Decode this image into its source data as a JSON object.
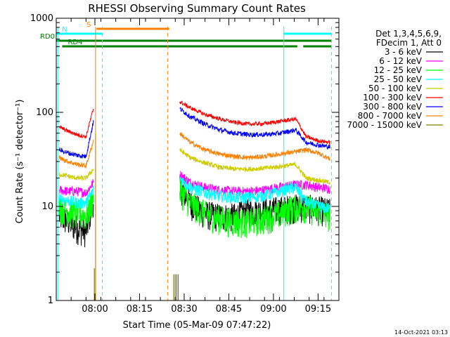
{
  "chart_data": {
    "type": "line",
    "title": "RHESSI Observing Summary Count Rates",
    "xlabel": "Start Time (05-Mar-09 07:47:22)",
    "ylabel": "Count Rate (s⁻¹ detector⁻¹)",
    "ylog": true,
    "ylim": [
      1,
      1000
    ],
    "xlim_minutes_after_0747": [
      0,
      95
    ],
    "x_ticks": [
      {
        "minute": 13,
        "label": "08:00"
      },
      {
        "minute": 28,
        "label": "08:15"
      },
      {
        "minute": 43,
        "label": "08:30"
      },
      {
        "minute": 58,
        "label": "08:45"
      },
      {
        "minute": 73,
        "label": "09:00"
      },
      {
        "minute": 88,
        "label": "09:15"
      }
    ],
    "y_ticks": [
      {
        "value": 1,
        "label": "1"
      },
      {
        "value": 10,
        "label": "10"
      },
      {
        "value": 100,
        "label": "100"
      },
      {
        "value": 1000,
        "label": "1000"
      }
    ],
    "legend_header": [
      "Det 1,3,4,5,6,9,",
      "FDecim 1, Att 0"
    ],
    "legend_placement": "right",
    "series": [
      {
        "name": "3 - 6 keV",
        "color": "#000000",
        "seg1": [
          8,
          7,
          6,
          5.5,
          12
        ],
        "seg2": [
          17,
          11,
          8.5,
          8,
          8,
          9,
          9,
          9.5,
          10,
          10,
          9.5,
          9
        ]
      },
      {
        "name": "6 - 12 keV",
        "color": "#ff00ff",
        "seg1": [
          15,
          14.5,
          14.5,
          14,
          18
        ],
        "seg2": [
          22,
          18,
          16,
          15,
          14.5,
          14.5,
          15,
          16,
          17,
          17,
          16,
          15.5
        ]
      },
      {
        "name": "12 - 25 keV",
        "color": "#00ff00",
        "seg1": [
          10,
          9,
          8.5,
          8,
          12
        ],
        "seg2": [
          15,
          11,
          8.5,
          7.5,
          7,
          7,
          7.5,
          8.5,
          10,
          10,
          9,
          8
        ]
      },
      {
        "name": "25 - 50 keV",
        "color": "#00ffff",
        "seg1": [
          12,
          11.5,
          11,
          11,
          15
        ],
        "seg2": [
          20,
          16,
          14,
          13,
          12.5,
          12.5,
          13,
          14.5,
          16,
          11,
          10,
          9.5
        ]
      },
      {
        "name": "50 - 100 keV",
        "color": "#cccc00",
        "seg1": [
          22,
          21,
          20,
          20,
          25
        ],
        "seg2": [
          40,
          33,
          29,
          26,
          25,
          25,
          25.5,
          26.5,
          28,
          20,
          19,
          18
        ]
      },
      {
        "name": "100 - 300 keV",
        "color": "#ff0000",
        "seg1": [
          70,
          63,
          58,
          55,
          110
        ],
        "seg2": [
          130,
          112,
          95,
          85,
          78,
          75,
          76,
          80,
          85,
          55,
          50,
          48
        ]
      },
      {
        "name": "300 - 800 keV",
        "color": "#0000ff",
        "seg1": [
          40,
          37,
          35,
          34,
          80
        ],
        "seg2": [
          110,
          90,
          75,
          65,
          60,
          58,
          58,
          60,
          65,
          48,
          45,
          43
        ]
      },
      {
        "name": "800 - 7000 keV",
        "color": "#ff8000",
        "seg1": [
          33,
          30,
          28,
          27,
          50
        ],
        "seg2": [
          60,
          48,
          40,
          36,
          34,
          33,
          34,
          36,
          38,
          40,
          37,
          32
        ]
      },
      {
        "name": "7000 - 15000 keV",
        "color": "#808000",
        "seg1": [],
        "seg2": []
      }
    ],
    "segments_x_minutes": {
      "seg1": [
        1,
        4,
        7,
        10,
        12.5
      ],
      "seg2": [
        41.5,
        45,
        50,
        55,
        60,
        65,
        70,
        75,
        80.5,
        84,
        88,
        92
      ]
    },
    "flags": [
      {
        "label": "S",
        "color": "#ff8000",
        "start_min": 13.5,
        "end_min": 38
      },
      {
        "label": "N",
        "color": "#00ffff",
        "start_min": 0,
        "end_min": 15.5
      },
      {
        "label": "N",
        "color": "#00ffff",
        "start_min": 76.5,
        "end_min": 92.5
      },
      {
        "label": "RD0",
        "color": "#008000",
        "start_min": 0,
        "end_min": 92.5
      },
      {
        "label": "RD4",
        "color": "#008000",
        "start_min": 2,
        "end_min": 81
      },
      {
        "label": "RD4",
        "color": "#008000",
        "start_min": 83,
        "end_min": 92.5
      }
    ],
    "vertical_lines": [
      {
        "minute": 0.5,
        "color": "#00ffff",
        "style": "solid"
      },
      {
        "minute": 13.2,
        "color": "#ff8000",
        "style": "solid"
      },
      {
        "minute": 15.5,
        "color": "#00ffff",
        "style": "dashed"
      },
      {
        "minute": 37.5,
        "color": "#ff8000",
        "style": "dashed"
      },
      {
        "minute": 76.5,
        "color": "#00ffff",
        "style": "solid"
      },
      {
        "minute": 92.5,
        "color": "#00ffff",
        "style": "dashed"
      }
    ],
    "timestamp": "14-Oct-2021 03:13"
  }
}
